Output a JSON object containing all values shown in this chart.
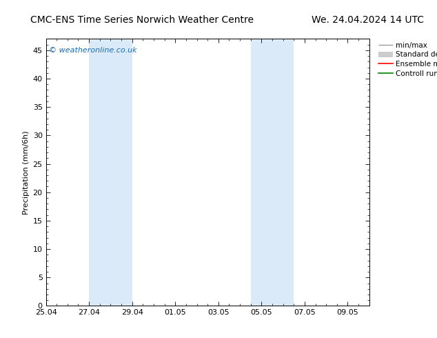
{
  "title_left": "CMC-ENS Time Series Norwich Weather Centre",
  "title_right": "We. 24.04.2024 14 UTC",
  "ylabel": "Precipitation (mm/6h)",
  "ylim": [
    0,
    47
  ],
  "yticks": [
    0,
    5,
    10,
    15,
    20,
    25,
    30,
    35,
    40,
    45
  ],
  "background_color": "#ffffff",
  "plot_bg_color": "#ffffff",
  "watermark": "© weatheronline.co.uk",
  "watermark_color": "#1a6ab5",
  "x_tick_labels": [
    "25.04",
    "27.04",
    "29.04",
    "01.05",
    "03.05",
    "05.05",
    "07.05",
    "09.05"
  ],
  "x_tick_positions": [
    0,
    2,
    4,
    6,
    8,
    10,
    12,
    14
  ],
  "xlim": [
    0,
    15
  ],
  "shaded_regions": [
    {
      "x_start": 2,
      "x_end": 4,
      "color": "#daeaf8"
    },
    {
      "x_start": 9.5,
      "x_end": 11.5,
      "color": "#daeaf8"
    }
  ],
  "legend_labels": [
    "min/max",
    "Standard deviation",
    "Ensemble mean run",
    "Controll run"
  ],
  "minmax_color": "#999999",
  "std_color": "#cccccc",
  "ensemble_mean_color": "#ff0000",
  "control_color": "#008000",
  "tick_color": "#000000",
  "axis_color": "#000000",
  "title_fontsize": 10,
  "axis_fontsize": 8,
  "watermark_fontsize": 8,
  "legend_fontsize": 7.5
}
